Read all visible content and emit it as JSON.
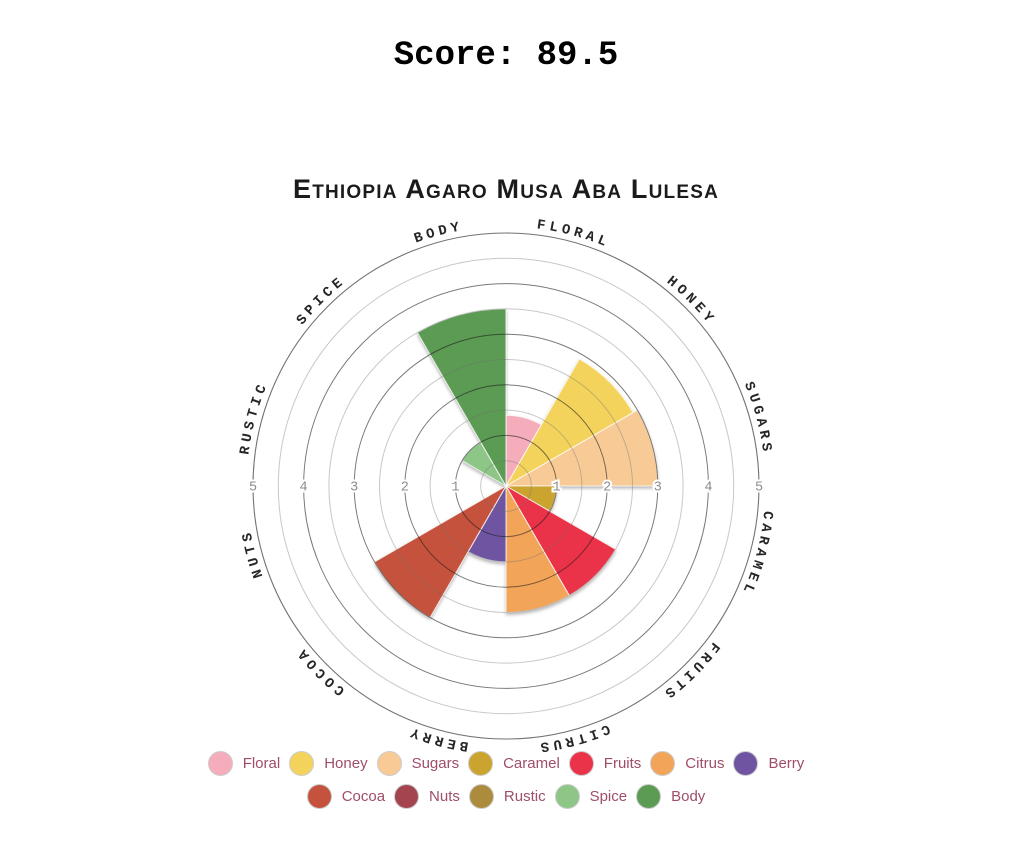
{
  "header": {
    "score_text": "Score: 89.5",
    "score_value": 89.5
  },
  "chart_data": {
    "type": "polar_bar",
    "title": "Ethiopia Agaro Musa Aba Lulesa",
    "categories": [
      "Floral",
      "Honey",
      "Sugars",
      "Caramel",
      "Fruits",
      "Citrus",
      "Berry",
      "Cocoa",
      "Nuts",
      "Rustic",
      "Spice",
      "Body"
    ],
    "values": [
      1.4,
      2.9,
      3.0,
      1.0,
      2.5,
      2.5,
      1.5,
      3.0,
      0,
      0,
      1.0,
      3.5
    ],
    "colors": {
      "Floral": "#F5ADBB",
      "Honey": "#F3D35B",
      "Sugars": "#F8CB96",
      "Caramel": "#CBA42F",
      "Fruits": "#EA3348",
      "Citrus": "#F2A459",
      "Berry": "#6F55A1",
      "Cocoa": "#C5523C",
      "Nuts": "#A3444E",
      "Rustic": "#AD8B3C",
      "Spice": "#8EC687",
      "Body": "#5C9B53"
    },
    "rlim": [
      0,
      5
    ],
    "grid_step": 0.5,
    "radial_ticks": [
      1,
      2,
      3,
      4,
      5
    ],
    "grid_on": true,
    "sector_span_degrees": 30,
    "first_sector_start_degrees_from_north": 0,
    "legend": {
      "position": "bottom",
      "rows": [
        [
          "Floral",
          "Honey",
          "Sugars",
          "Caramel",
          "Fruits",
          "Citrus",
          "Berry"
        ],
        [
          "Cocoa",
          "Nuts",
          "Rustic",
          "Spice",
          "Body"
        ]
      ]
    },
    "text_colors": {
      "legend_label": "#9E4E68",
      "axis_label": "#262626",
      "tick_label": "#8c8c8c"
    }
  }
}
